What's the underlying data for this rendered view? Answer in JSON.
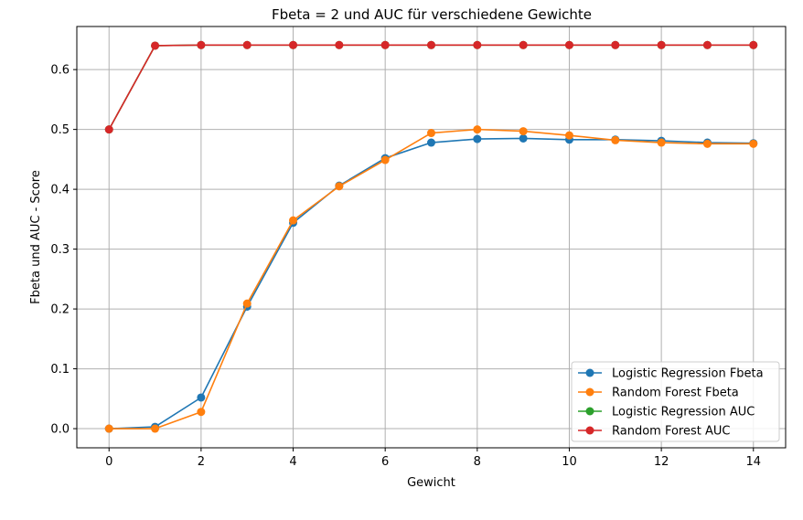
{
  "chart_data": {
    "type": "line",
    "title": "Fbeta = 2 und AUC für verschiedene Gewichte",
    "xlabel": "Gewicht",
    "ylabel": "Fbeta und AUC - Score",
    "xlim": [
      -0.7,
      14.7
    ],
    "ylim": [
      -0.032,
      0.672
    ],
    "xticks": [
      0,
      2,
      4,
      6,
      8,
      10,
      12,
      14
    ],
    "yticks": [
      0.0,
      0.1,
      0.2,
      0.3,
      0.4,
      0.5,
      0.6
    ],
    "ytick_labels": [
      "0.0",
      "0.1",
      "0.2",
      "0.3",
      "0.4",
      "0.5",
      "0.6"
    ],
    "grid": true,
    "legend_position": "lower-right",
    "x": [
      0,
      1,
      2,
      3,
      4,
      5,
      6,
      7,
      8,
      9,
      10,
      11,
      12,
      13,
      14
    ],
    "series": [
      {
        "name": "Logistic Regression Fbeta",
        "color": "#1f77b4",
        "values": [
          0.0,
          0.003,
          0.052,
          0.204,
          0.344,
          0.406,
          0.452,
          0.478,
          0.484,
          0.485,
          0.483,
          0.483,
          0.481,
          0.478,
          0.477
        ]
      },
      {
        "name": "Random Forest Fbeta",
        "color": "#ff7f0e",
        "values": [
          0.0,
          0.0,
          0.028,
          0.209,
          0.348,
          0.405,
          0.449,
          0.494,
          0.5,
          0.497,
          0.49,
          0.482,
          0.478,
          0.476,
          0.476
        ]
      },
      {
        "name": "Logistic Regression AUC",
        "color": "#2ca02c",
        "values": [
          0.5,
          0.64,
          0.641,
          0.641,
          0.641,
          0.641,
          0.641,
          0.641,
          0.641,
          0.641,
          0.641,
          0.641,
          0.641,
          0.641,
          0.641
        ]
      },
      {
        "name": "Random Forest AUC",
        "color": "#d62728",
        "values": [
          0.5,
          0.64,
          0.641,
          0.641,
          0.641,
          0.641,
          0.641,
          0.641,
          0.641,
          0.641,
          0.641,
          0.641,
          0.641,
          0.641,
          0.641
        ]
      }
    ]
  }
}
